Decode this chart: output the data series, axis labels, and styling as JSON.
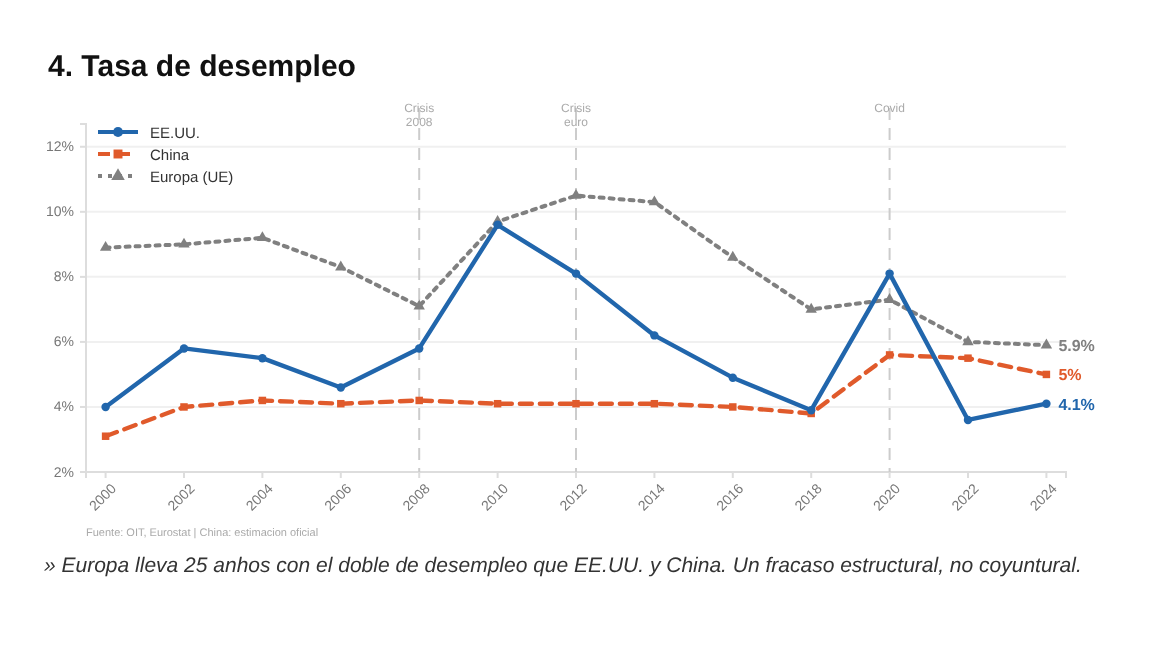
{
  "chart_data": {
    "type": "line",
    "title": "4. Tasa de desempleo",
    "x": [
      2000,
      2002,
      2004,
      2006,
      2008,
      2010,
      2012,
      2014,
      2016,
      2018,
      2020,
      2022,
      2024
    ],
    "xlim": [
      1999.5,
      2024.5
    ],
    "xticks": [
      2000,
      2002,
      2004,
      2006,
      2008,
      2010,
      2012,
      2014,
      2016,
      2018,
      2020,
      2022,
      2024
    ],
    "ylim": [
      2,
      12.7
    ],
    "yticks": [
      {
        "value": 2,
        "label": "2%"
      },
      {
        "value": 4,
        "label": "4%"
      },
      {
        "value": 6,
        "label": "6%"
      },
      {
        "value": 8,
        "label": "8%"
      },
      {
        "value": 10,
        "label": "10%"
      },
      {
        "value": 12,
        "label": "12%"
      }
    ],
    "grid": "y",
    "legend": "top left",
    "series": [
      {
        "name": "EE.UU.",
        "color": "#2166ac",
        "marker": "circle",
        "line_style": "solid",
        "values": [
          4.0,
          5.8,
          5.5,
          4.6,
          5.8,
          9.6,
          8.1,
          6.2,
          4.9,
          3.9,
          8.1,
          3.6,
          4.1
        ],
        "value_labels": [
          null,
          null,
          null,
          null,
          null,
          null,
          null,
          null,
          null,
          null,
          null,
          null,
          "4.1%"
        ]
      },
      {
        "name": "China",
        "color": "#e05a2b",
        "marker": "square",
        "line_style": "dashed",
        "values": [
          3.1,
          4.0,
          4.2,
          4.1,
          4.2,
          4.1,
          4.1,
          4.1,
          4.0,
          3.8,
          5.6,
          5.5,
          5.0
        ],
        "value_labels": [
          null,
          null,
          null,
          null,
          null,
          null,
          null,
          null,
          null,
          null,
          null,
          null,
          "5%"
        ]
      },
      {
        "name": "Europa (UE)",
        "color": "#808080",
        "marker": "triangle",
        "line_style": "dotted",
        "values": [
          8.9,
          9.0,
          9.2,
          8.3,
          7.1,
          9.7,
          10.5,
          10.3,
          8.6,
          7.0,
          7.3,
          6.0,
          5.9
        ],
        "value_labels": [
          null,
          null,
          null,
          null,
          null,
          null,
          null,
          null,
          null,
          null,
          null,
          null,
          "5.9%"
        ]
      }
    ],
    "ref_lines": [
      {
        "axis": "x",
        "value": 2008,
        "label": "Crisis\n2008",
        "color": "#cccccc",
        "line_style": "dashed"
      },
      {
        "axis": "x",
        "value": 2012,
        "label": "Crisis\neuro",
        "color": "#cccccc",
        "line_style": "dashed"
      },
      {
        "axis": "x",
        "value": 2020,
        "label": "Covid",
        "color": "#cccccc",
        "line_style": "dashed"
      }
    ],
    "annotations": [
      "Fuente: OIT, Eurostat | China: estimacion oficial",
      "» Europa lleva 25 anhos con el doble de desempleo que EE.UU. y China. Un fracaso estructural, no coyuntural."
    ]
  }
}
